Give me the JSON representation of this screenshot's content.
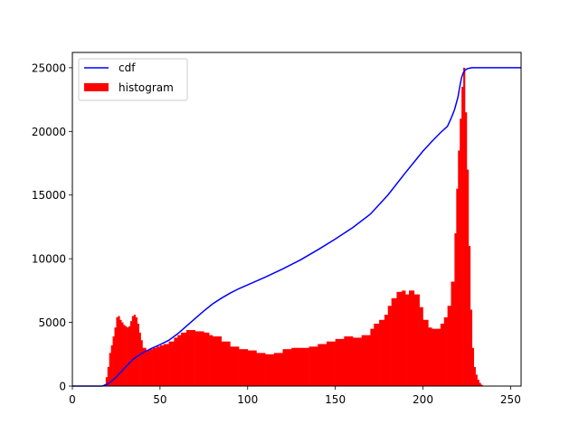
{
  "chart_data": {
    "type": "bar",
    "title": "",
    "xlabel": "",
    "ylabel": "",
    "xlim": [
      0,
      256
    ],
    "ylim": [
      0,
      26200
    ],
    "xticks": [
      0,
      50,
      100,
      150,
      200,
      250
    ],
    "yticks": [
      0,
      5000,
      10000,
      15000,
      20000,
      25000
    ],
    "xtick_labels": [
      "0",
      "50",
      "100",
      "150",
      "200",
      "250"
    ],
    "ytick_labels": [
      "0",
      "5000",
      "10000",
      "15000",
      "20000",
      "25000"
    ],
    "grid": false,
    "legend_position": "upper-left",
    "legend": [
      {
        "label": "cdf",
        "kind": "line",
        "color": "#0000ff"
      },
      {
        "label": "histogram",
        "kind": "bar",
        "color": "#ff0000"
      }
    ],
    "histogram": {
      "name": "histogram",
      "color": "#ff0000",
      "bin_width": 1,
      "x": [
        18,
        19,
        20,
        21,
        22,
        23,
        24,
        25,
        26,
        27,
        28,
        29,
        30,
        31,
        32,
        33,
        34,
        35,
        36,
        37,
        38,
        39,
        40,
        42,
        44,
        46,
        48,
        50,
        52,
        55,
        58,
        60,
        62,
        65,
        68,
        70,
        72,
        75,
        78,
        80,
        85,
        90,
        95,
        100,
        105,
        110,
        115,
        120,
        125,
        130,
        135,
        140,
        145,
        150,
        155,
        160,
        165,
        170,
        172,
        175,
        178,
        180,
        182,
        185,
        188,
        190,
        192,
        195,
        198,
        200,
        203,
        205,
        208,
        210,
        212,
        214,
        216,
        218,
        219,
        220,
        221,
        222,
        223,
        224,
        225,
        226,
        227,
        228,
        229,
        230,
        231,
        232,
        233,
        234
      ],
      "values": [
        150,
        700,
        1500,
        2600,
        3200,
        3900,
        4600,
        5400,
        5500,
        5200,
        5000,
        4800,
        4700,
        4600,
        4700,
        5100,
        5500,
        5600,
        5400,
        4900,
        4200,
        3600,
        3000,
        2800,
        2900,
        3000,
        3100,
        3200,
        3300,
        3500,
        3800,
        4000,
        4200,
        4400,
        4400,
        4300,
        4300,
        4200,
        4000,
        3900,
        3500,
        3100,
        2900,
        2800,
        2600,
        2500,
        2600,
        2900,
        3000,
        3000,
        3100,
        3300,
        3500,
        3700,
        3900,
        3800,
        4000,
        4500,
        4900,
        5200,
        5600,
        6300,
        6900,
        7400,
        7500,
        7200,
        7500,
        7200,
        6200,
        5200,
        4600,
        4500,
        4500,
        4900,
        5400,
        6300,
        8200,
        12000,
        15500,
        18500,
        21000,
        23500,
        25000,
        21500,
        17000,
        11000,
        6000,
        3000,
        1500,
        900,
        500,
        250,
        100,
        30
      ]
    },
    "cdf": {
      "name": "cdf",
      "color": "#0000ff",
      "x": [
        0,
        17,
        18,
        20,
        22,
        25,
        30,
        35,
        40,
        45,
        50,
        55,
        60,
        65,
        70,
        75,
        80,
        85,
        90,
        95,
        100,
        110,
        120,
        130,
        140,
        150,
        160,
        170,
        180,
        190,
        195,
        200,
        205,
        210,
        214,
        216,
        218,
        220,
        221,
        222,
        223,
        224,
        225,
        226,
        228,
        230,
        240,
        256
      ],
      "values": [
        0,
        0,
        50,
        150,
        350,
        700,
        1450,
        2150,
        2600,
        2950,
        3250,
        3600,
        4100,
        4700,
        5300,
        5900,
        6450,
        6900,
        7300,
        7650,
        7950,
        8550,
        9200,
        9900,
        10700,
        11550,
        12450,
        13500,
        15000,
        16750,
        17600,
        18450,
        19200,
        19900,
        20400,
        21000,
        21700,
        22700,
        23500,
        24200,
        24600,
        24800,
        24900,
        24950,
        25000,
        25000,
        25000,
        25000
      ]
    }
  }
}
